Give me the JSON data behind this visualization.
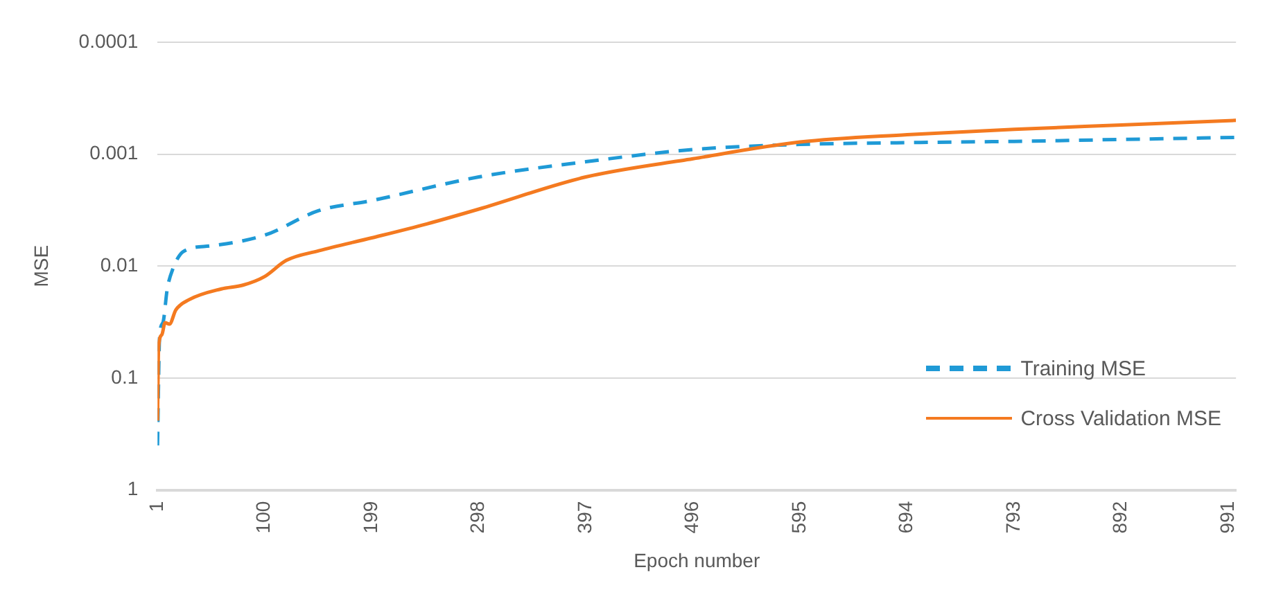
{
  "chart_data": {
    "type": "line",
    "xlabel": "Epoch number",
    "ylabel": "MSE",
    "xlim": [
      1,
      998
    ],
    "xticks": [
      1,
      100,
      199,
      298,
      397,
      496,
      595,
      694,
      793,
      892,
      991
    ],
    "ylim": [
      1,
      0.0001
    ],
    "yticks": [
      1,
      0.1,
      0.01,
      0.001,
      0.0001
    ],
    "log": "y",
    "grid": "y",
    "legend": "right",
    "marker": "none",
    "series": [
      {
        "name": "Training MSE",
        "color": "#1f9ad6",
        "line_style": "dashed",
        "x": [
          1,
          3,
          6,
          10,
          15,
          25,
          50,
          100,
          150,
          199,
          298,
          397,
          496,
          595,
          694,
          793,
          892,
          998
        ],
        "values": [
          0.4,
          0.041,
          0.032,
          0.016,
          0.0107,
          0.0074,
          0.0066,
          0.0053,
          0.0032,
          0.0026,
          0.0016,
          0.00117,
          0.00091,
          0.00082,
          0.00079,
          0.00077,
          0.00074,
          0.00071
        ]
      },
      {
        "name": "Cross Validation MSE",
        "color": "#f47a20",
        "line_style": "solid",
        "x": [
          1,
          2,
          5,
          8,
          12,
          18,
          30,
          60,
          80,
          100,
          120,
          150,
          199,
          250,
          298,
          397,
          496,
          595,
          694,
          793,
          892,
          998
        ],
        "values": [
          0.24,
          0.053,
          0.041,
          0.032,
          0.033,
          0.0246,
          0.02,
          0.016,
          0.0148,
          0.0124,
          0.0089,
          0.0073,
          0.0056,
          0.0042,
          0.0031,
          0.0016,
          0.0011,
          0.00078,
          0.00067,
          0.0006,
          0.00055,
          0.0005
        ]
      }
    ]
  }
}
